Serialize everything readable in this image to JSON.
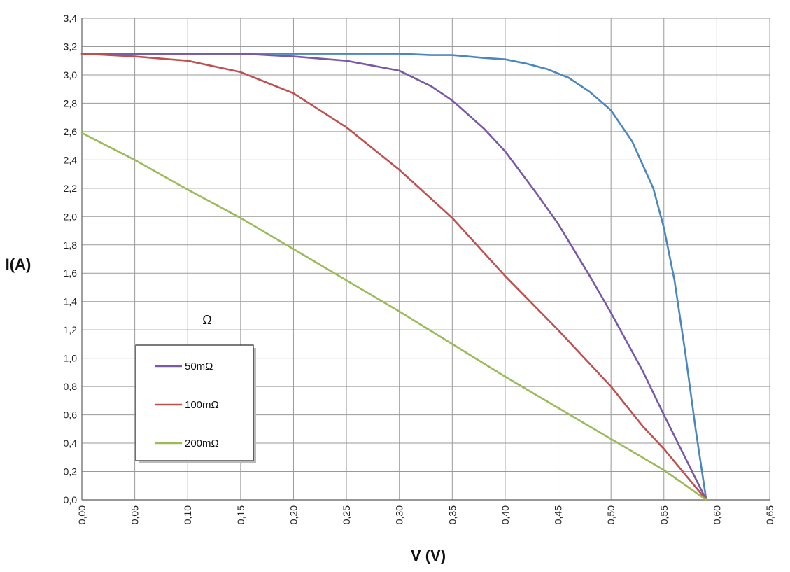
{
  "chart_data": {
    "type": "line",
    "xlabel": "V (V)",
    "ylabel": "I(A)",
    "xlim": [
      0,
      0.65
    ],
    "ylim": [
      0,
      3.4
    ],
    "x_ticks": [
      "0,00",
      "0,05",
      "0,10",
      "0,15",
      "0,20",
      "0,25",
      "0,30",
      "0,35",
      "0,40",
      "0,45",
      "0,50",
      "0,55",
      "0,60",
      "0,65"
    ],
    "y_ticks": [
      "0,0",
      "0,2",
      "0,4",
      "0,6",
      "0,8",
      "1,0",
      "1,2",
      "1,4",
      "1,6",
      "1,8",
      "2,0",
      "2,2",
      "2,4",
      "2,6",
      "2,8",
      "3,0",
      "3,2",
      "3,4"
    ],
    "grid": true,
    "legend_position": "lower-left",
    "annotation": "Ω",
    "series": [
      {
        "name": "",
        "color": "#4a86c0",
        "points": [
          [
            0,
            3.15
          ],
          [
            0.05,
            3.15
          ],
          [
            0.1,
            3.15
          ],
          [
            0.15,
            3.15
          ],
          [
            0.2,
            3.15
          ],
          [
            0.25,
            3.15
          ],
          [
            0.3,
            3.15
          ],
          [
            0.33,
            3.14
          ],
          [
            0.35,
            3.14
          ],
          [
            0.38,
            3.12
          ],
          [
            0.4,
            3.11
          ],
          [
            0.42,
            3.08
          ],
          [
            0.44,
            3.04
          ],
          [
            0.46,
            2.98
          ],
          [
            0.48,
            2.88
          ],
          [
            0.5,
            2.75
          ],
          [
            0.52,
            2.53
          ],
          [
            0.54,
            2.2
          ],
          [
            0.55,
            1.92
          ],
          [
            0.56,
            1.55
          ],
          [
            0.57,
            1.05
          ],
          [
            0.58,
            0.5
          ],
          [
            0.59,
            0.0
          ]
        ]
      },
      {
        "name": "50mΩ",
        "color": "#7b58a6",
        "points": [
          [
            0,
            3.15
          ],
          [
            0.05,
            3.15
          ],
          [
            0.1,
            3.15
          ],
          [
            0.15,
            3.15
          ],
          [
            0.2,
            3.13
          ],
          [
            0.25,
            3.1
          ],
          [
            0.3,
            3.03
          ],
          [
            0.33,
            2.92
          ],
          [
            0.35,
            2.82
          ],
          [
            0.38,
            2.62
          ],
          [
            0.4,
            2.46
          ],
          [
            0.43,
            2.16
          ],
          [
            0.45,
            1.95
          ],
          [
            0.48,
            1.58
          ],
          [
            0.5,
            1.32
          ],
          [
            0.53,
            0.91
          ],
          [
            0.55,
            0.6
          ],
          [
            0.57,
            0.3
          ],
          [
            0.59,
            0.0
          ]
        ]
      },
      {
        "name": "100mΩ",
        "color": "#c0504d",
        "points": [
          [
            0,
            3.15
          ],
          [
            0.05,
            3.13
          ],
          [
            0.1,
            3.1
          ],
          [
            0.15,
            3.02
          ],
          [
            0.2,
            2.87
          ],
          [
            0.25,
            2.63
          ],
          [
            0.3,
            2.33
          ],
          [
            0.35,
            1.99
          ],
          [
            0.4,
            1.58
          ],
          [
            0.45,
            1.2
          ],
          [
            0.5,
            0.8
          ],
          [
            0.53,
            0.52
          ],
          [
            0.55,
            0.36
          ],
          [
            0.59,
            0.0
          ]
        ]
      },
      {
        "name": "200mΩ",
        "color": "#9bbb59",
        "points": [
          [
            0,
            2.59
          ],
          [
            0.05,
            2.4
          ],
          [
            0.1,
            2.19
          ],
          [
            0.15,
            1.99
          ],
          [
            0.2,
            1.77
          ],
          [
            0.25,
            1.55
          ],
          [
            0.3,
            1.33
          ],
          [
            0.35,
            1.1
          ],
          [
            0.4,
            0.87
          ],
          [
            0.45,
            0.65
          ],
          [
            0.5,
            0.43
          ],
          [
            0.55,
            0.21
          ],
          [
            0.59,
            0.0
          ]
        ]
      }
    ]
  }
}
